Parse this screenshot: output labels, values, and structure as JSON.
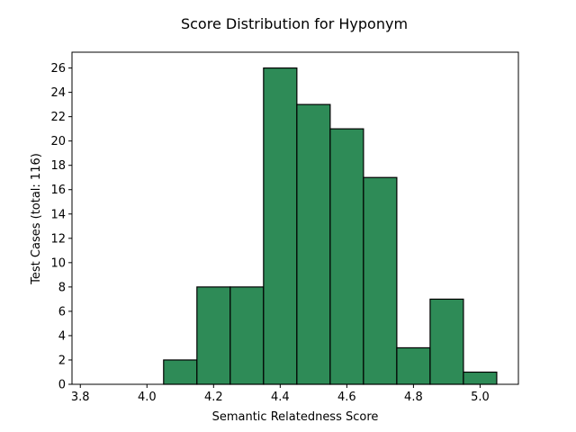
{
  "chart_data": {
    "type": "bar",
    "title": "Score Distribution for Hyponym",
    "xlabel": "Semantic Relatedness Score",
    "ylabel": "Test Cases (total: 116)",
    "xlim": [
      3.775,
      5.115
    ],
    "ylim": [
      0,
      27.3
    ],
    "bar_color": "#2e8b57",
    "edge_color": "#000000",
    "bins": [
      {
        "start": 4.05,
        "end": 4.15,
        "value": 2
      },
      {
        "start": 4.15,
        "end": 4.25,
        "value": 8
      },
      {
        "start": 4.25,
        "end": 4.35,
        "value": 8
      },
      {
        "start": 4.35,
        "end": 4.45,
        "value": 26
      },
      {
        "start": 4.45,
        "end": 4.55,
        "value": 23
      },
      {
        "start": 4.55,
        "end": 4.65,
        "value": 21
      },
      {
        "start": 4.65,
        "end": 4.75,
        "value": 17
      },
      {
        "start": 4.75,
        "end": 4.85,
        "value": 3
      },
      {
        "start": 4.85,
        "end": 4.95,
        "value": 7
      },
      {
        "start": 4.95,
        "end": 5.05,
        "value": 1
      }
    ],
    "xticks": [
      3.8,
      4.0,
      4.2,
      4.4,
      4.6,
      4.8,
      5.0
    ],
    "xtick_labels": [
      "3.8",
      "4.0",
      "4.2",
      "4.4",
      "4.6",
      "4.8",
      "5.0"
    ],
    "yticks": [
      0,
      2,
      4,
      6,
      8,
      10,
      12,
      14,
      16,
      18,
      20,
      22,
      24,
      26
    ],
    "ytick_labels": [
      "0",
      "2",
      "4",
      "6",
      "8",
      "10",
      "12",
      "14",
      "16",
      "18",
      "20",
      "22",
      "24",
      "26"
    ],
    "grid": false,
    "legend": "none"
  }
}
